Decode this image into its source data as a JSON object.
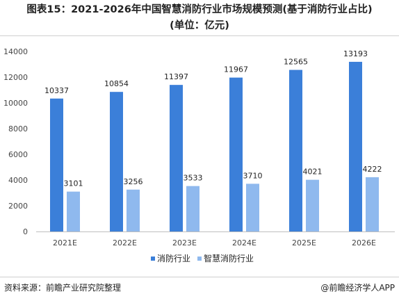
{
  "title_line1": "图表15：2021-2026年中国智慧消防行业市场规模预测(基于消防行业占比)",
  "title_line2": "(单位：亿元)",
  "source": "资料来源：前瞻产业研究院整理",
  "credit": "@前瞻经济学人APP",
  "colors": {
    "series1": "#3b7fd9",
    "series2": "#8fb9ee"
  },
  "chart_data": {
    "type": "bar",
    "categories": [
      "2021E",
      "2022E",
      "2023E",
      "2024E",
      "2025E",
      "2026E"
    ],
    "series": [
      {
        "name": "消防行业",
        "values": [
          10337,
          10854,
          11397,
          11967,
          12565,
          13193
        ]
      },
      {
        "name": "智慧消防行业",
        "values": [
          3101,
          3256,
          3533,
          3710,
          4021,
          4222
        ]
      }
    ],
    "ylim": [
      0,
      14000
    ],
    "yticks": [
      "0",
      "2000",
      "4000",
      "6000",
      "8000",
      "10000",
      "12000",
      "14000"
    ],
    "legend_position": "bottom",
    "grid": false
  }
}
